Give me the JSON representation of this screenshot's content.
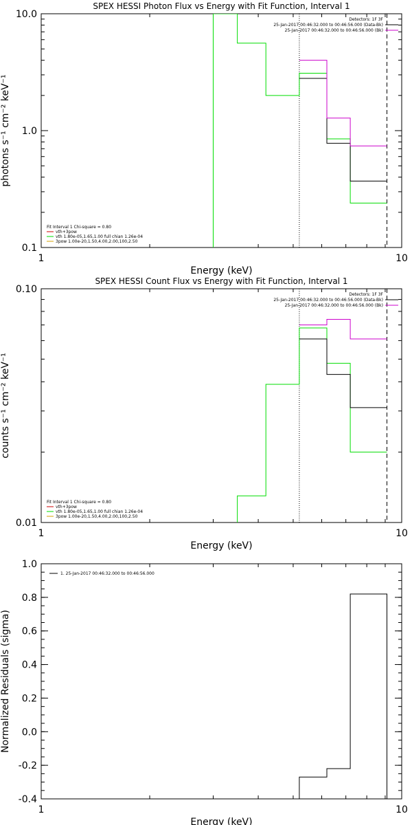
{
  "colors": {
    "black": "#000000",
    "green": "#00dd00",
    "magenta": "#cc00cc",
    "orange": "#d4a000",
    "red": "#cc0000"
  },
  "chart_data": [
    {
      "type": "line",
      "title": "SPEX HESSI Photon Flux vs Energy with Fit Function, Interval 1",
      "xlabel": "Energy (keV)",
      "ylabel": "photons s⁻¹ cm⁻² keV⁻¹",
      "xscale": "log",
      "yscale": "log",
      "xlim": [
        1,
        10
      ],
      "ylim": [
        0.1,
        10
      ],
      "xticks": [
        "1",
        "10"
      ],
      "yticks": [
        {
          "v": 0.1,
          "l": "0.1"
        },
        {
          "v": 1,
          "l": "1.0"
        },
        {
          "v": 10,
          "l": "10.0"
        }
      ],
      "legend_tr": {
        "title": "Detectors: 1F 3F",
        "entries": [
          {
            "text": "25-Jan-2017 00:46:32.000 to 00:46:56.000 (Data-Bk)",
            "color": "#000000"
          },
          {
            "text": "25-Jan-2017 00:46:32.000 to 00:46:56.000 (Bk)",
            "color": "#cc00cc"
          }
        ]
      },
      "legend_bl": {
        "entries": [
          {
            "text": "Fit Interval 1    Chi-square = 0.80",
            "color": null
          },
          {
            "text": "vth+3pow",
            "color": "#cc0000"
          },
          {
            "text": "vth 1.80e-05,1.65,1.00   full chian 1.26e-04",
            "color": "#00dd00"
          },
          {
            "text": "3pow 1.00e-20,1.50,4.00,2.00,100,2.50",
            "color": "#d4a000"
          }
        ]
      },
      "vlines": [
        {
          "x": 5.2,
          "style": "dotted"
        },
        {
          "x": 9.1,
          "style": "dashed"
        }
      ],
      "series": [
        {
          "color": "#00dd00",
          "edges": [
            3.0,
            3.5,
            4.2,
            5.2,
            6.2,
            7.2,
            9.1
          ],
          "values": [
            10,
            5.6,
            2.0,
            3.1,
            0.85,
            0.24
          ],
          "drop_from": 3.0
        },
        {
          "color": "#000000",
          "edges": [
            5.2,
            6.2,
            7.2,
            9.1
          ],
          "values": [
            2.8,
            0.78,
            0.37
          ]
        },
        {
          "color": "#cc00cc",
          "edges": [
            5.2,
            6.2,
            7.2,
            9.1
          ],
          "values": [
            4.0,
            1.28,
            0.74
          ]
        }
      ]
    },
    {
      "type": "line",
      "title": "SPEX HESSI Count Flux vs Energy with Fit Function, Interval 1",
      "xlabel": "Energy (keV)",
      "ylabel": "counts s⁻¹ cm⁻² keV⁻¹",
      "xscale": "log",
      "yscale": "log",
      "xlim": [
        1,
        10
      ],
      "ylim": [
        0.01,
        0.1
      ],
      "xticks": [
        "1",
        "10"
      ],
      "yticks": [
        {
          "v": 0.01,
          "l": "0.01"
        },
        {
          "v": 0.1,
          "l": "0.10"
        }
      ],
      "legend_tr": {
        "title": "Detectors: 1F 3F",
        "entries": [
          {
            "text": "25-Jan-2017 00:46:32.000 to 00:46:56.000 (Data-Bk)",
            "color": "#000000"
          },
          {
            "text": "25-Jan-2017 00:46:32.000 to 00:46:56.000 (Bk)",
            "color": "#cc00cc"
          }
        ]
      },
      "legend_bl": {
        "entries": [
          {
            "text": "Fit Interval 1    Chi-square = 0.80",
            "color": null
          },
          {
            "text": "vth+3pow",
            "color": "#cc0000"
          },
          {
            "text": "vth 1.80e-05,1.65,1.00   full chian 1.26e-04",
            "color": "#00dd00"
          },
          {
            "text": "3pow 1.00e-20,1.50,4.00,2.00,100,2.50",
            "color": "#d4a000"
          }
        ]
      },
      "vlines": [
        {
          "x": 5.2,
          "style": "dotted"
        },
        {
          "x": 9.1,
          "style": "dashed"
        }
      ],
      "series": [
        {
          "color": "#00dd00",
          "edges": [
            3.5,
            4.2,
            5.2,
            6.2,
            7.2,
            9.1
          ],
          "values": [
            0.013,
            0.039,
            0.068,
            0.048,
            0.02
          ],
          "drop_from": 3.5
        },
        {
          "color": "#000000",
          "edges": [
            5.2,
            6.2,
            7.2,
            9.1
          ],
          "values": [
            0.061,
            0.043,
            0.031
          ]
        },
        {
          "color": "#cc00cc",
          "edges": [
            5.2,
            6.2,
            7.2,
            9.1
          ],
          "values": [
            0.07,
            0.074,
            0.061
          ]
        }
      ]
    },
    {
      "type": "line",
      "title": "",
      "xlabel": "Energy (keV)",
      "ylabel": "Normalized Residuals (sigma)",
      "xscale": "log",
      "yscale": "linear",
      "xlim": [
        1,
        10
      ],
      "ylim": [
        -0.4,
        1.0
      ],
      "xticks": [
        "1",
        "10"
      ],
      "yticks": [
        {
          "v": -0.4,
          "l": "-0.4"
        },
        {
          "v": -0.2,
          "l": "-0.2"
        },
        {
          "v": 0,
          "l": "0.0"
        },
        {
          "v": 0.2,
          "l": "0.2"
        },
        {
          "v": 0.4,
          "l": "0.4"
        },
        {
          "v": 0.6,
          "l": "0.6"
        },
        {
          "v": 0.8,
          "l": "0.8"
        },
        {
          "v": 1.0,
          "l": "1.0"
        }
      ],
      "legend_tl": {
        "entries": [
          {
            "text": "1. 25-Jan-2017 00:46:32.000 to 00:46:56.000",
            "color": "#000000"
          }
        ]
      },
      "series": [
        {
          "color": "#000000",
          "edges": [
            5.2,
            6.2,
            7.2,
            9.1
          ],
          "values": [
            -0.27,
            -0.22,
            0.82
          ],
          "residual": true
        }
      ]
    }
  ]
}
